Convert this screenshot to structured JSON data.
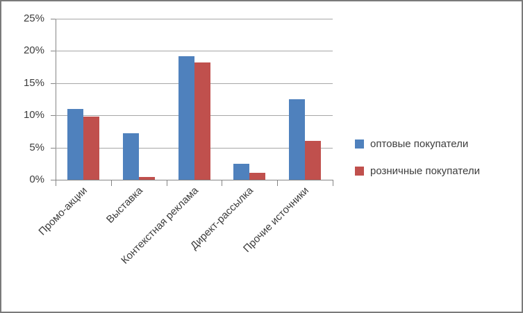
{
  "chart_data": {
    "type": "bar",
    "title": "",
    "xlabel": "",
    "ylabel": "",
    "categories": [
      "Промо-акции",
      "Выставка",
      "Контекстная реклама",
      "Директ-рассылка",
      "Прочие источники"
    ],
    "series": [
      {
        "name": "оптовые покупатели",
        "color": "#4F81BD",
        "values": [
          11,
          7.2,
          19.2,
          2.5,
          12.5
        ]
      },
      {
        "name": "розничные покупатели",
        "color": "#C0504D",
        "values": [
          9.8,
          0.4,
          18.2,
          1.1,
          6
        ]
      }
    ],
    "y_axis": {
      "min": 0,
      "max": 25,
      "step": 5,
      "unit": "%",
      "tick_labels": [
        "0%",
        "5%",
        "10%",
        "15%",
        "20%",
        "25%"
      ]
    },
    "grid": true,
    "legend_position": "right",
    "styles": {
      "gridline_color": "#A6A6A6",
      "axis_color": "#848484",
      "text_color": "#3C3C3C",
      "frame_border_color": "#7A7A7A",
      "background": "#FFFFFF"
    }
  }
}
